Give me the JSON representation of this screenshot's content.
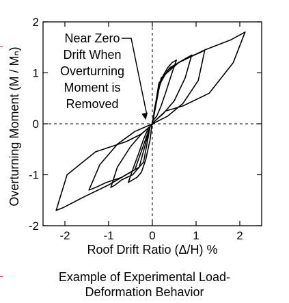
{
  "chart_data": {
    "type": "line",
    "title": "",
    "xlabel": "Roof Drift Ratio (Δ/H) %",
    "ylabel": "Overturning Moment (M / Mₙ)",
    "xlim": [
      -2.5,
      2.5
    ],
    "ylim": [
      -2,
      2
    ],
    "x_ticks": [
      -2,
      -1,
      0,
      1,
      2
    ],
    "x_tick_labels": [
      "-2",
      "-1",
      "0",
      "1",
      "2"
    ],
    "y_ticks": [
      -2,
      -1,
      0,
      1,
      2
    ],
    "y_tick_labels": [
      "-2",
      "-1",
      "0",
      "1",
      "2"
    ],
    "grid": false,
    "reference_lines": {
      "x_zero": "dashed",
      "y_zero": "dashed"
    },
    "annotation": {
      "lines": [
        "Near Zero",
        "Drift When",
        "Overturning",
        "Moment is",
        "Removed"
      ],
      "points_to": {
        "x": -0.15,
        "y": 0.05
      }
    },
    "series": [
      {
        "x": [
          0,
          0.05,
          0.15,
          0.25,
          0.35,
          0.45,
          0.55,
          0.45,
          0.3,
          0.2,
          0.1,
          0,
          -0.05,
          -0.15,
          -0.25,
          -0.35,
          -0.45,
          -0.55,
          -0.45,
          -0.3,
          -0.2,
          -0.1,
          0
        ],
        "y": [
          0,
          0.3,
          0.7,
          0.95,
          1.1,
          1.2,
          1.25,
          1.0,
          0.6,
          0.35,
          0.15,
          0.05,
          -0.3,
          -0.7,
          -0.95,
          -1.05,
          -1.1,
          -1.15,
          -0.9,
          -0.55,
          -0.3,
          -0.1,
          0
        ]
      },
      {
        "x": [
          0,
          0.15,
          0.35,
          0.6,
          0.8,
          0.9,
          0.75,
          0.5,
          0.25,
          0.05,
          -0.05,
          -0.2,
          -0.45,
          -0.7,
          -0.85,
          -0.95,
          -0.8,
          -0.5,
          -0.25,
          -0.05,
          0
        ],
        "y": [
          0,
          0.75,
          1.05,
          1.2,
          1.3,
          1.35,
          0.9,
          0.45,
          0.2,
          0.05,
          -0.05,
          -0.75,
          -1.0,
          -1.1,
          -1.2,
          -1.25,
          -0.85,
          -0.45,
          -0.2,
          -0.05,
          0
        ]
      },
      {
        "x": [
          0,
          0.15,
          0.4,
          0.8,
          1.1,
          1.2,
          1.05,
          0.7,
          0.35,
          0.05,
          -0.05,
          -0.3,
          -0.7,
          -1.05,
          -1.3,
          -1.45,
          -1.2,
          -0.8,
          -0.4,
          -0.05,
          0
        ],
        "y": [
          0,
          0.8,
          1.1,
          1.3,
          1.4,
          1.45,
          0.85,
          0.4,
          0.15,
          0.02,
          -0.05,
          -0.85,
          -1.05,
          -1.15,
          -1.25,
          -1.3,
          -0.8,
          -0.4,
          -0.15,
          -0.02,
          0
        ]
      },
      {
        "x": [
          0,
          0.2,
          0.6,
          1.2,
          1.8,
          2.12,
          1.85,
          1.3,
          0.7,
          0.3,
          0.05,
          -0.05,
          -0.4,
          -1.0,
          -1.6,
          -2.05,
          -2.2,
          -1.95,
          -1.3,
          -0.6,
          -0.25,
          -0.05,
          0
        ],
        "y": [
          0,
          0.9,
          1.2,
          1.45,
          1.65,
          1.8,
          1.2,
          0.6,
          0.35,
          0.25,
          0.05,
          -0.05,
          -0.9,
          -1.2,
          -1.45,
          -1.65,
          -1.7,
          -1.0,
          -0.55,
          -0.35,
          -0.2,
          -0.05,
          0
        ]
      }
    ]
  },
  "caption": {
    "line1": "Example of Experimental Load-",
    "line2": "Deformation Behavior"
  },
  "colors": {
    "plot": "#000000",
    "edge_marks": "#d62020"
  }
}
